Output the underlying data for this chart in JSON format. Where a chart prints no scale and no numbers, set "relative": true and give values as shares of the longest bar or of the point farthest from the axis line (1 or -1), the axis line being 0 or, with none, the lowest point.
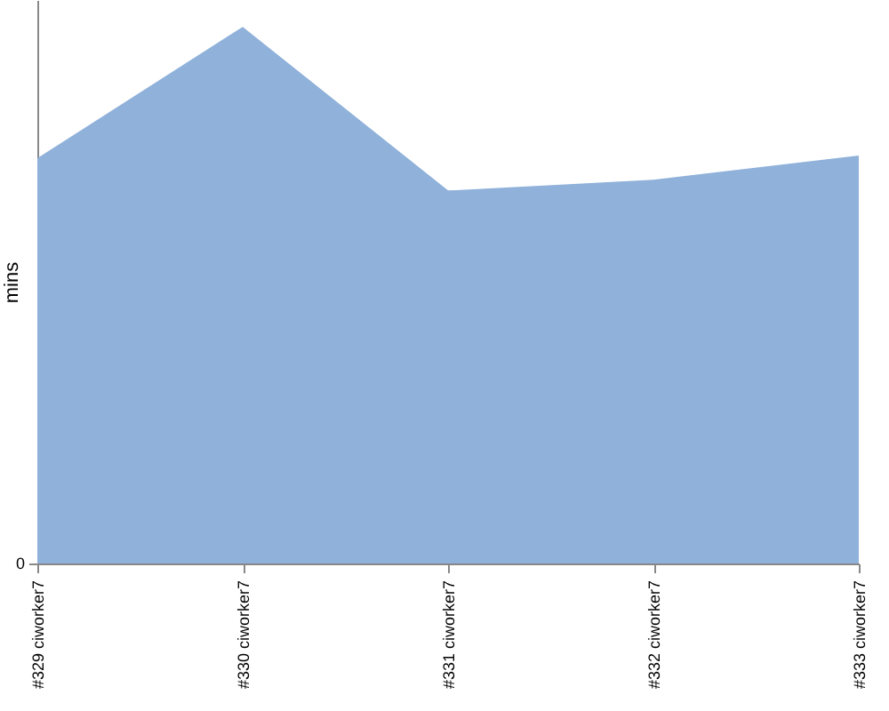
{
  "chart_data": {
    "type": "area",
    "ylabel": "mins",
    "relative": true,
    "annotations": [
      "0"
    ],
    "categories": [
      "#329 ciworker7",
      "#330 ciworker7",
      "#331 ciworker7",
      "#332 ciworker7",
      "#333 ciworker7"
    ],
    "series": [
      {
        "color": "#8fb1da",
        "values": [
          0.755,
          1,
          0.695,
          0.715,
          0.76
        ]
      }
    ],
    "grid": false
  }
}
